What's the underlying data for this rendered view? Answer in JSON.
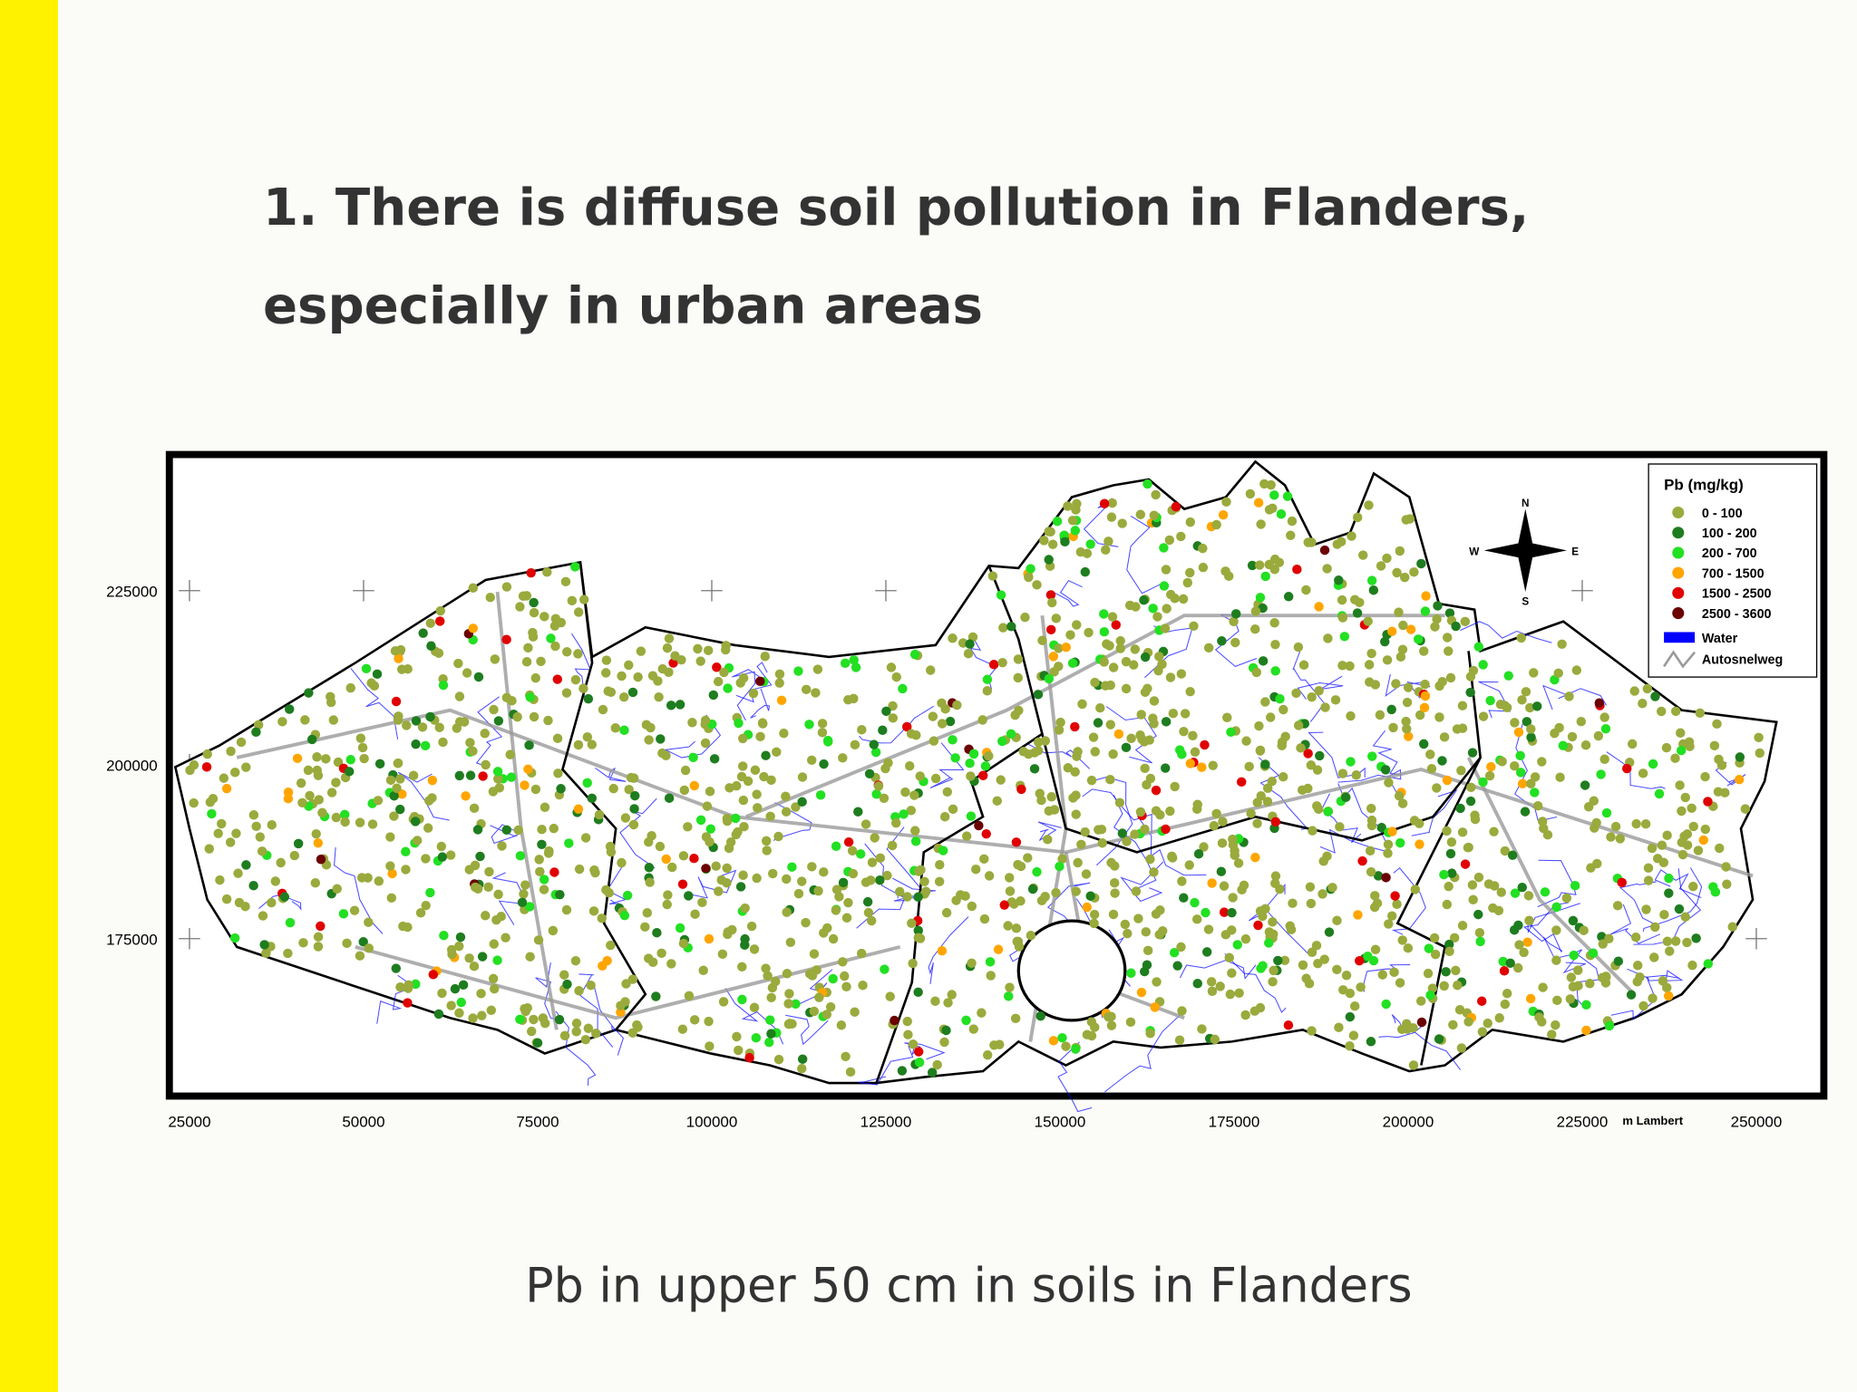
{
  "slide": {
    "title_lines": [
      "1. There is diffuse soil pollution in Flanders,",
      "especially in urban areas"
    ],
    "caption": "Pb in upper 50 cm in soils in Flanders"
  },
  "map": {
    "x_labels": [
      "25000",
      "50000",
      "75000",
      "100000",
      "125000",
      "150000",
      "175000",
      "200000",
      "225000",
      "250000"
    ],
    "x_unit": "m Lambert",
    "y_labels": [
      "225000",
      "200000",
      "175000"
    ],
    "compass": {
      "n": "N",
      "e": "E",
      "s": "S",
      "w": "W"
    },
    "legend": {
      "title": "Pb (mg/kg)",
      "classes": [
        {
          "label": "0 - 100",
          "color": "#9aaa3c"
        },
        {
          "label": "100 - 200",
          "color": "#1e7d1e"
        },
        {
          "label": "200 - 700",
          "color": "#22e022"
        },
        {
          "label": "700 - 1500",
          "color": "#ffa500"
        },
        {
          "label": "1500 - 2500",
          "color": "#e00000"
        },
        {
          "label": "2500 - 3600",
          "color": "#6b0000"
        }
      ],
      "water": {
        "label": "Water",
        "color": "#0000ff"
      },
      "road": {
        "label": "Autosnelweg",
        "color": "#9a9a9a"
      }
    }
  }
}
